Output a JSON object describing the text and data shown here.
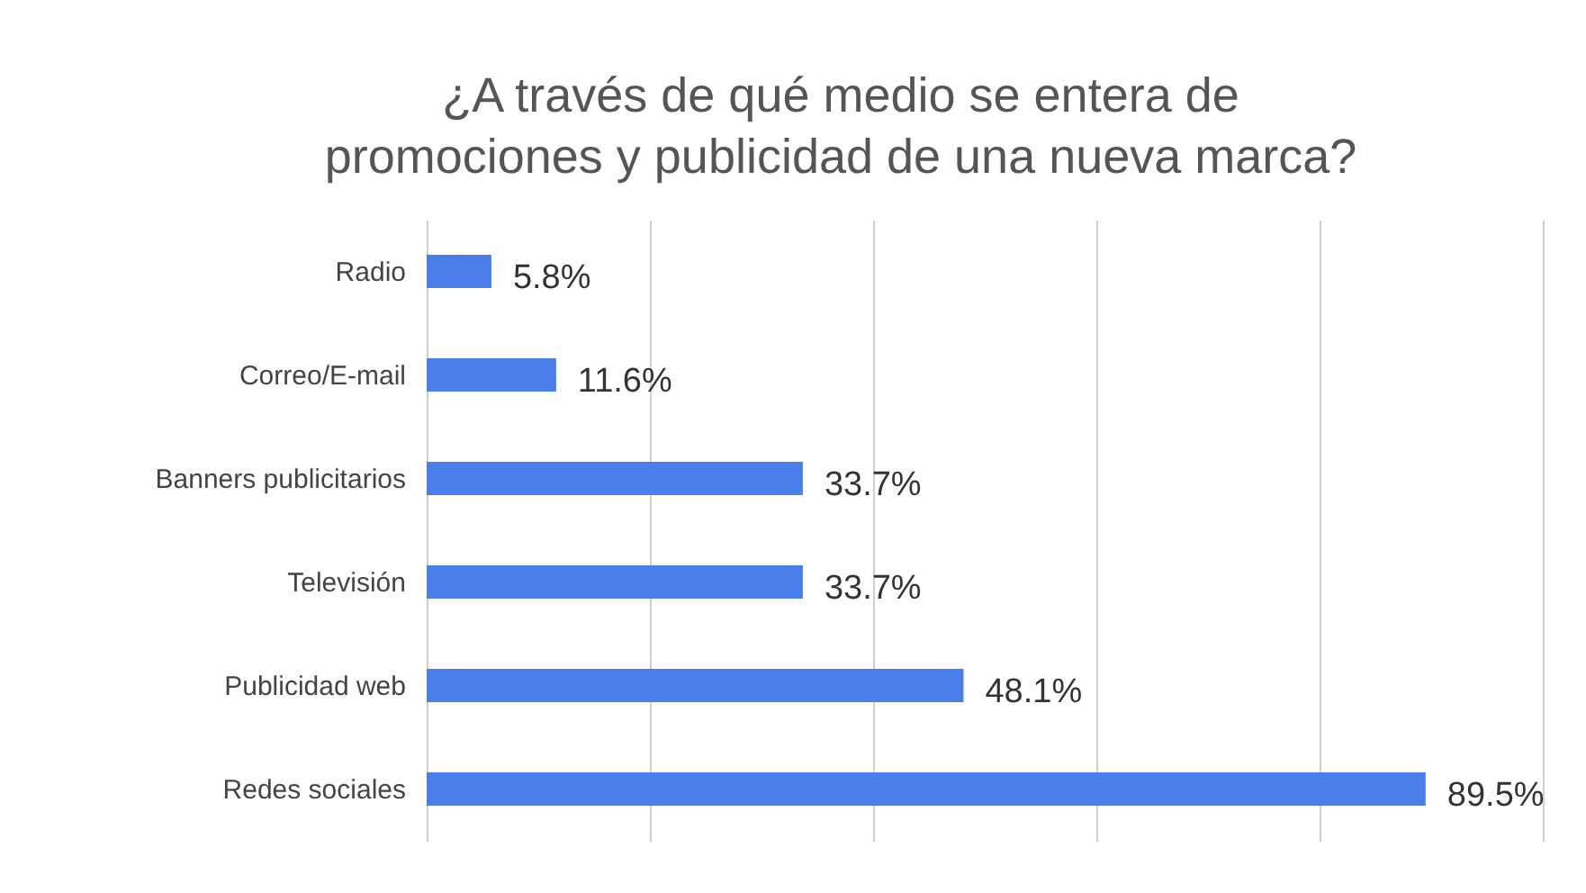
{
  "chart_data": {
    "type": "bar",
    "orientation": "horizontal",
    "title": "¿A través de qué medio se entera de promociones y publicidad de una nueva marca?",
    "categories": [
      "Radio",
      "Correo/E-mail",
      "Banners publicitarios",
      "Televisión",
      "Publicidad web",
      "Redes sociales"
    ],
    "values": [
      5.8,
      11.6,
      33.7,
      33.7,
      48.1,
      89.5
    ],
    "value_labels": [
      "5.8%",
      "11.6%",
      "33.7%",
      "33.7%",
      "48.1%",
      "89.5%"
    ],
    "color": "#4a7ee8",
    "xlim": [
      0,
      100
    ],
    "xticks": [
      {
        "value": 0,
        "label": null
      },
      {
        "value": 20,
        "label": null
      },
      {
        "value": 40,
        "label": null
      },
      {
        "value": 60,
        "label": null
      },
      {
        "value": 80,
        "label": null
      },
      {
        "value": 100,
        "label": null
      }
    ],
    "grid": true,
    "tick_labels": "y"
  }
}
